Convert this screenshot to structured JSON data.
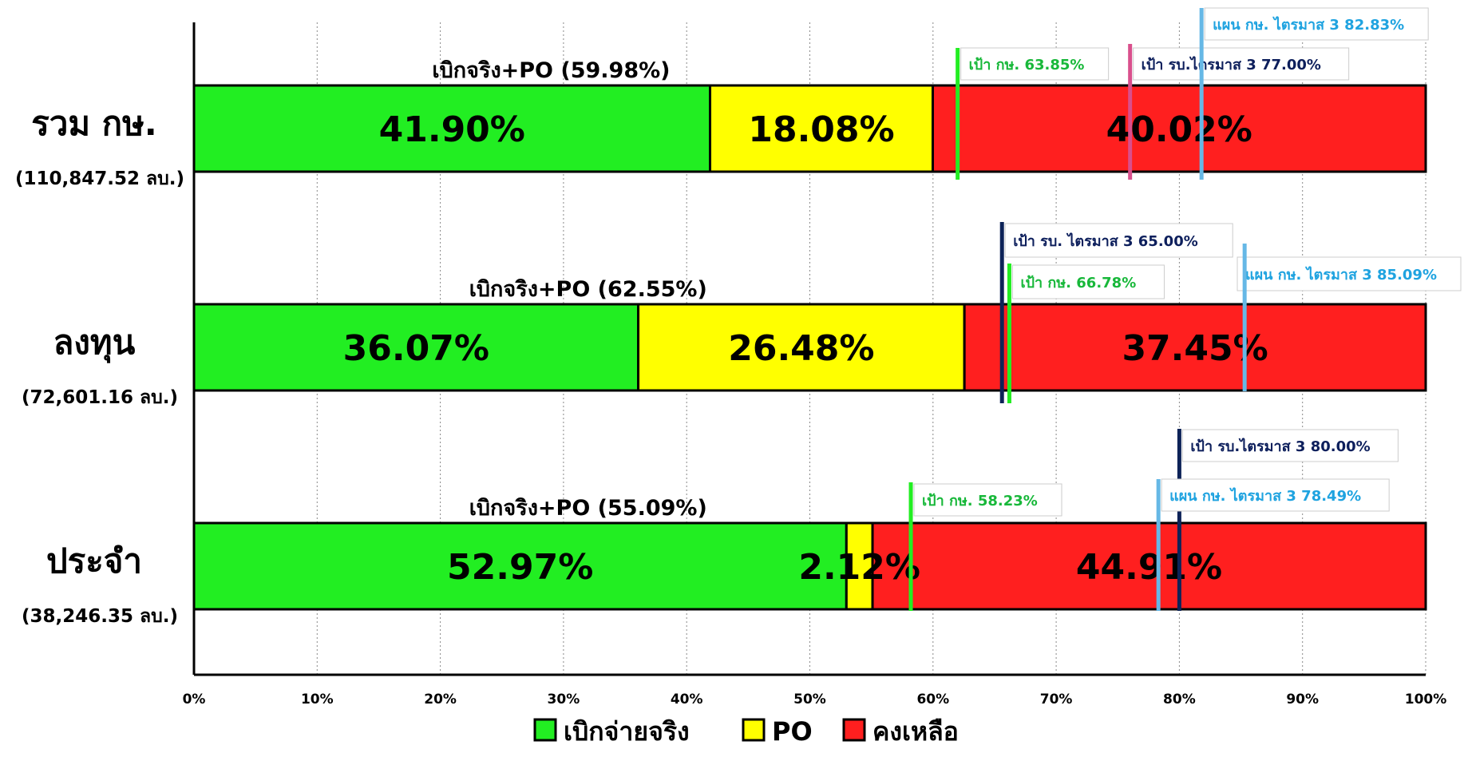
{
  "chart_data": {
    "type": "bar",
    "orientation": "horizontal",
    "stacked": true,
    "x_ticks": [
      "0%",
      "10%",
      "20%",
      "30%",
      "40%",
      "50%",
      "60%",
      "70%",
      "80%",
      "90%",
      "100%"
    ],
    "xlim": [
      0,
      100
    ],
    "grid": "vertical dotted",
    "legend_position": "bottom",
    "legend": [
      {
        "label": "เบิกจ่ายจริง",
        "color": "#22ee22"
      },
      {
        "label": "PO",
        "color": "#ffff00"
      },
      {
        "label": "คงเหลือ",
        "color": "#ff1f1f"
      }
    ],
    "categories": [
      {
        "name": "รวม กษ.",
        "total": "(110,847.52 ลบ.)",
        "summary": "เบิกจริง+PO  (59.98%)",
        "segments": [
          {
            "series": "เบิกจ่ายจริง",
            "value": 41.9,
            "label": "41.90%"
          },
          {
            "series": "PO",
            "value": 18.08,
            "label": "18.08%"
          },
          {
            "series": "คงเหลือ",
            "value": 40.02,
            "label": "40.02%"
          }
        ],
        "markers": [
          {
            "label": "เป้า กษ. 63.85%",
            "value": 62.0,
            "color": "#22ee22",
            "text_color": "#18b83a"
          },
          {
            "label": "เป้า รบ.ไตรมาส 3 77.00%",
            "value": 76.0,
            "color": "#d94f8c",
            "text_color": "#0d1f5c"
          },
          {
            "label": "แผน กษ. ไตรมาส 3 82.83%",
            "value": 81.8,
            "color": "#66b8e6",
            "text_color": "#1fa3e0"
          }
        ]
      },
      {
        "name": "ลงทุน",
        "total": "(72,601.16 ลบ.)",
        "summary": "เบิกจริง+PO (62.55%)",
        "segments": [
          {
            "series": "เบิกจ่ายจริง",
            "value": 36.07,
            "label": "36.07%"
          },
          {
            "series": "PO",
            "value": 26.48,
            "label": "26.48%"
          },
          {
            "series": "คงเหลือ",
            "value": 37.45,
            "label": "37.45%"
          }
        ],
        "markers": [
          {
            "label": "เป้า รบ. ไตรมาส 3 65.00%",
            "value": 65.6,
            "color": "#0d2358",
            "text_color": "#0d1f5c"
          },
          {
            "label": "เป้า กษ. 66.78%",
            "value": 66.2,
            "color": "#22ee22",
            "text_color": "#18b83a"
          },
          {
            "label": "แผน กษ. ไตรมาส 3  85.09%",
            "value": 85.3,
            "color": "#66b8e6",
            "text_color": "#1fa3e0"
          }
        ]
      },
      {
        "name": "ประจำ",
        "total": "(38,246.35 ลบ.)",
        "summary": "เบิกจริง+PO  (55.09%)",
        "segments": [
          {
            "series": "เบิกจ่ายจริง",
            "value": 52.97,
            "label": "52.97%"
          },
          {
            "series": "PO",
            "value": 2.12,
            "label": "2.12%"
          },
          {
            "series": "คงเหลือ",
            "value": 44.91,
            "label": "44.91%"
          }
        ],
        "markers": [
          {
            "label": "เป้า กษ. 58.23%",
            "value": 58.2,
            "color": "#22ee22",
            "text_color": "#18b83a"
          },
          {
            "label": "เป้า รบ.ไตรมาส 3 80.00%",
            "value": 80.0,
            "color": "#0d2358",
            "text_color": "#0d1f5c"
          },
          {
            "label": "แผน กษ. ไตรมาส 3  78.49%",
            "value": 78.3,
            "color": "#66b8e6",
            "text_color": "#1fa3e0"
          }
        ]
      }
    ]
  }
}
